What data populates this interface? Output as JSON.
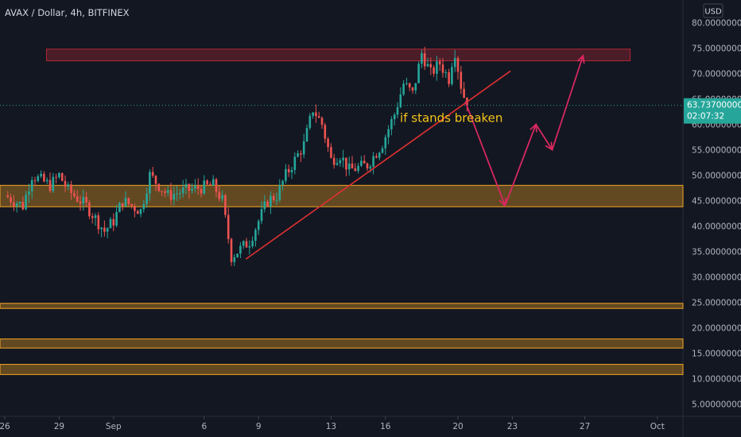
{
  "header": {
    "title": "AVAX / Dollar, 4h, BITFINEX"
  },
  "currency_label": "USD",
  "price_badge": {
    "price": "63.73700000",
    "countdown": "02:07:32",
    "value": 63.737
  },
  "chart_data": {
    "type": "candlestick",
    "title": "AVAX / Dollar, 4h, BITFINEX",
    "unit": "USD",
    "ylim": [
      2,
      83
    ],
    "y_ticks": [
      5,
      10,
      15,
      20,
      25,
      30,
      35,
      40,
      45,
      50,
      55,
      60,
      65,
      70,
      75,
      80
    ],
    "y_tick_labels": [
      "5.00000000",
      "10.00000000",
      "15.00000000",
      "20.00000000",
      "25.00000000",
      "30.00000000",
      "35.00000000",
      "40.00000000",
      "45.00000000",
      "50.00000000",
      "55.00000000",
      "60.00000000",
      "65.00000000",
      "70.00000000",
      "75.00000000",
      "80.00000000"
    ],
    "x_ticks": [
      {
        "label": "26",
        "day": 0
      },
      {
        "label": "29",
        "day": 3
      },
      {
        "label": "Sep",
        "day": 6
      },
      {
        "label": "6",
        "day": 11
      },
      {
        "label": "9",
        "day": 14
      },
      {
        "label": "13",
        "day": 18
      },
      {
        "label": "16",
        "day": 21
      },
      {
        "label": "20",
        "day": 25
      },
      {
        "label": "23",
        "day": 28
      },
      {
        "label": "27",
        "day": 32
      },
      {
        "label": "Oct",
        "day": 36
      }
    ],
    "last_price": 63.737,
    "anchors": [
      [
        0,
        46
      ],
      [
        1,
        44
      ],
      [
        1.5,
        50
      ],
      [
        2.5,
        48
      ],
      [
        3,
        50
      ],
      [
        3.5,
        47
      ],
      [
        4.5,
        44
      ],
      [
        5.5,
        39
      ],
      [
        6,
        41
      ],
      [
        6.5,
        45
      ],
      [
        7.5,
        43
      ],
      [
        8,
        50
      ],
      [
        9,
        46
      ],
      [
        10,
        47
      ],
      [
        11.5,
        48
      ],
      [
        12,
        45
      ],
      [
        12.5,
        34
      ],
      [
        13.5,
        37
      ],
      [
        14.5,
        45
      ],
      [
        15,
        46
      ],
      [
        15.5,
        50
      ],
      [
        16.5,
        56
      ],
      [
        17,
        63
      ],
      [
        17.5,
        60
      ],
      [
        18,
        53
      ],
      [
        18.5,
        54
      ],
      [
        19,
        51
      ],
      [
        20,
        52
      ],
      [
        20.8,
        56
      ],
      [
        21.5,
        62
      ],
      [
        22,
        68
      ],
      [
        22.5,
        66
      ],
      [
        23,
        74
      ],
      [
        23.5,
        70
      ],
      [
        24,
        72
      ],
      [
        24.5,
        69
      ],
      [
        24.8,
        75
      ],
      [
        25.2,
        67
      ],
      [
        25.5,
        63.7
      ]
    ],
    "zones": [
      {
        "type": "resistance",
        "from": 72.5,
        "to": 74.8,
        "day_start": 2.3,
        "day_end": 34.5,
        "color": "#b22833"
      },
      {
        "type": "support",
        "from": 43.8,
        "to": 48.0,
        "color": "#f5a623"
      },
      {
        "type": "support",
        "from": 23.8,
        "to": 24.8,
        "color": "#f5a623"
      },
      {
        "type": "support",
        "from": 16.0,
        "to": 17.8,
        "color": "#f5a623"
      },
      {
        "type": "support",
        "from": 10.8,
        "to": 12.8,
        "color": "#f5a623"
      }
    ],
    "trendline": {
      "from": [
        13.3,
        33.5
      ],
      "to": [
        27.9,
        70.5
      ],
      "color": "#e03131"
    },
    "projection": {
      "points": [
        [
          25.4,
          64.5
        ],
        [
          27.6,
          44
        ],
        [
          29.3,
          60
        ],
        [
          30.2,
          55
        ],
        [
          31.9,
          73.5
        ]
      ],
      "color": "#d6285f"
    },
    "annotation": {
      "text": "if stands breaken",
      "day": 21.8,
      "price": 60.5,
      "color": "#f5c518"
    },
    "colors": {
      "up": "#26a69a",
      "down": "#ef5350",
      "background": "#131722",
      "axis_text": "#b2b5be"
    }
  }
}
